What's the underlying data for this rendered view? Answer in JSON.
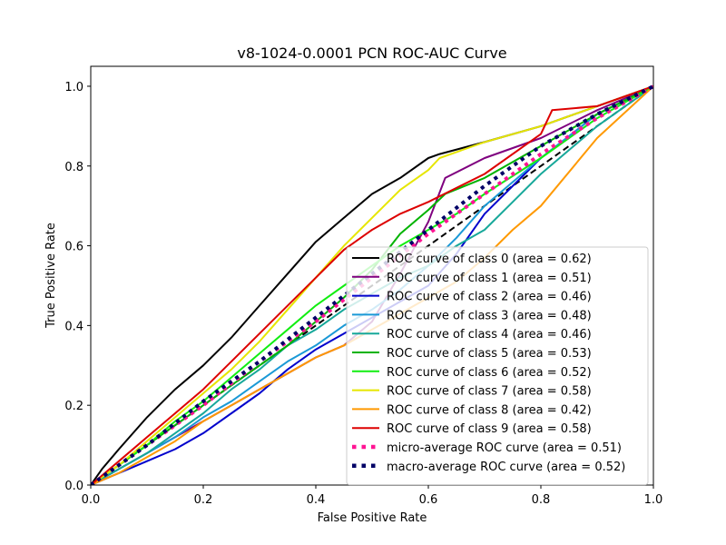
{
  "chart_data": {
    "type": "line",
    "title": "v8-1024-0.0001 PCN ROC-AUC Curve",
    "xlabel": "False Positive Rate",
    "ylabel": "True Positive Rate",
    "xlim": [
      0.0,
      1.0
    ],
    "ylim": [
      0.0,
      1.05
    ],
    "xticks": [
      "0.0",
      "0.2",
      "0.4",
      "0.6",
      "0.8",
      "1.0"
    ],
    "yticks": [
      "0.0",
      "0.2",
      "0.4",
      "0.6",
      "0.8",
      "1.0"
    ],
    "grid": false,
    "legend_position": "lower right",
    "chance_line": {
      "x": [
        0,
        1
      ],
      "y": [
        0,
        1
      ],
      "color": "#000000",
      "style": "dashed"
    },
    "series": [
      {
        "name": "ROC curve of class 0 (area = 0.62)",
        "color": "#000000",
        "style": "solid",
        "x": [
          0,
          0.02,
          0.05,
          0.1,
          0.15,
          0.2,
          0.25,
          0.3,
          0.35,
          0.4,
          0.45,
          0.5,
          0.55,
          0.6,
          0.62,
          0.7,
          0.8,
          0.9,
          1.0
        ],
        "y": [
          0,
          0.04,
          0.09,
          0.17,
          0.24,
          0.3,
          0.37,
          0.45,
          0.53,
          0.61,
          0.67,
          0.73,
          0.77,
          0.82,
          0.83,
          0.86,
          0.9,
          0.95,
          1.0
        ]
      },
      {
        "name": "ROC curve of class 1 (area = 0.51)",
        "color": "#7f007f",
        "style": "solid",
        "x": [
          0,
          0.05,
          0.1,
          0.15,
          0.2,
          0.25,
          0.3,
          0.35,
          0.4,
          0.45,
          0.5,
          0.55,
          0.6,
          0.63,
          0.7,
          0.8,
          0.9,
          1.0
        ],
        "y": [
          0,
          0.04,
          0.08,
          0.12,
          0.16,
          0.2,
          0.24,
          0.28,
          0.32,
          0.35,
          0.41,
          0.53,
          0.66,
          0.77,
          0.82,
          0.87,
          0.94,
          1.0
        ]
      },
      {
        "name": "ROC curve of class 2 (area = 0.46)",
        "color": "#0000cc",
        "style": "solid",
        "x": [
          0,
          0.05,
          0.1,
          0.15,
          0.2,
          0.25,
          0.3,
          0.35,
          0.4,
          0.45,
          0.5,
          0.55,
          0.6,
          0.65,
          0.7,
          0.8,
          0.9,
          1.0
        ],
        "y": [
          0,
          0.03,
          0.06,
          0.09,
          0.13,
          0.18,
          0.23,
          0.29,
          0.34,
          0.38,
          0.42,
          0.46,
          0.5,
          0.58,
          0.68,
          0.82,
          0.93,
          1.0
        ]
      },
      {
        "name": "ROC curve of class 3 (area = 0.48)",
        "color": "#1a99d6",
        "style": "solid",
        "x": [
          0,
          0.05,
          0.1,
          0.15,
          0.2,
          0.25,
          0.3,
          0.35,
          0.4,
          0.45,
          0.5,
          0.55,
          0.6,
          0.65,
          0.7,
          0.8,
          0.9,
          1.0
        ],
        "y": [
          0,
          0.04,
          0.08,
          0.12,
          0.17,
          0.21,
          0.26,
          0.31,
          0.35,
          0.4,
          0.44,
          0.49,
          0.55,
          0.62,
          0.7,
          0.82,
          0.93,
          1.0
        ]
      },
      {
        "name": "ROC curve of class 4 (area = 0.46)",
        "color": "#17a89a",
        "style": "solid",
        "x": [
          0,
          0.05,
          0.1,
          0.15,
          0.2,
          0.25,
          0.3,
          0.35,
          0.4,
          0.45,
          0.5,
          0.55,
          0.6,
          0.65,
          0.7,
          0.75,
          0.8,
          0.9,
          1.0
        ],
        "y": [
          0,
          0.04,
          0.08,
          0.13,
          0.18,
          0.24,
          0.29,
          0.35,
          0.39,
          0.44,
          0.48,
          0.52,
          0.55,
          0.6,
          0.64,
          0.71,
          0.78,
          0.9,
          1.0
        ]
      },
      {
        "name": "ROC curve of class 5 (area = 0.53)",
        "color": "#00b300",
        "style": "solid",
        "x": [
          0,
          0.05,
          0.1,
          0.15,
          0.2,
          0.25,
          0.3,
          0.35,
          0.4,
          0.45,
          0.5,
          0.55,
          0.6,
          0.63,
          0.7,
          0.8,
          0.9,
          1.0
        ],
        "y": [
          0,
          0.05,
          0.1,
          0.15,
          0.2,
          0.25,
          0.3,
          0.35,
          0.41,
          0.47,
          0.54,
          0.63,
          0.69,
          0.73,
          0.77,
          0.85,
          0.93,
          1.0
        ]
      },
      {
        "name": "ROC curve of class 6 (area = 0.52)",
        "color": "#11ee11",
        "style": "solid",
        "x": [
          0,
          0.05,
          0.1,
          0.15,
          0.2,
          0.25,
          0.3,
          0.35,
          0.4,
          0.45,
          0.5,
          0.55,
          0.6,
          0.65,
          0.7,
          0.8,
          0.9,
          1.0
        ],
        "y": [
          0,
          0.05,
          0.1,
          0.16,
          0.21,
          0.27,
          0.33,
          0.39,
          0.45,
          0.5,
          0.55,
          0.6,
          0.64,
          0.68,
          0.73,
          0.82,
          0.92,
          1.0
        ]
      },
      {
        "name": "ROC curve of class 7 (area = 0.58)",
        "color": "#e6e600",
        "style": "solid",
        "x": [
          0,
          0.05,
          0.1,
          0.15,
          0.2,
          0.25,
          0.3,
          0.35,
          0.4,
          0.45,
          0.5,
          0.55,
          0.6,
          0.62,
          0.7,
          0.8,
          0.9,
          1.0
        ],
        "y": [
          0,
          0.05,
          0.11,
          0.17,
          0.23,
          0.29,
          0.36,
          0.44,
          0.52,
          0.6,
          0.67,
          0.74,
          0.79,
          0.82,
          0.86,
          0.9,
          0.95,
          1.0
        ]
      },
      {
        "name": "ROC curve of class 8 (area = 0.42)",
        "color": "#ff9900",
        "style": "solid",
        "x": [
          0,
          0.05,
          0.1,
          0.15,
          0.2,
          0.25,
          0.3,
          0.35,
          0.4,
          0.45,
          0.5,
          0.55,
          0.6,
          0.65,
          0.7,
          0.75,
          0.8,
          0.9,
          1.0
        ],
        "y": [
          0,
          0.03,
          0.07,
          0.11,
          0.16,
          0.2,
          0.24,
          0.28,
          0.32,
          0.35,
          0.39,
          0.43,
          0.47,
          0.51,
          0.57,
          0.64,
          0.7,
          0.87,
          1.0
        ]
      },
      {
        "name": "ROC curve of class 9 (area = 0.58)",
        "color": "#dd0000",
        "style": "solid",
        "x": [
          0,
          0.05,
          0.1,
          0.15,
          0.2,
          0.25,
          0.3,
          0.35,
          0.4,
          0.45,
          0.5,
          0.55,
          0.6,
          0.7,
          0.8,
          0.82,
          0.9,
          1.0
        ],
        "y": [
          0,
          0.06,
          0.12,
          0.18,
          0.24,
          0.31,
          0.38,
          0.45,
          0.52,
          0.59,
          0.64,
          0.68,
          0.71,
          0.78,
          0.88,
          0.94,
          0.95,
          1.0
        ]
      },
      {
        "name": "micro-average ROC curve (area = 0.51)",
        "color": "#ff1493",
        "style": "dotted",
        "x": [
          0,
          0.1,
          0.2,
          0.3,
          0.4,
          0.5,
          0.6,
          0.7,
          0.8,
          0.9,
          1.0
        ],
        "y": [
          0,
          0.1,
          0.2,
          0.31,
          0.41,
          0.52,
          0.63,
          0.73,
          0.83,
          0.92,
          1.0
        ]
      },
      {
        "name": "macro-average ROC curve (area = 0.52)",
        "color": "#000066",
        "style": "dotted",
        "x": [
          0,
          0.1,
          0.2,
          0.3,
          0.4,
          0.5,
          0.6,
          0.7,
          0.8,
          0.9,
          1.0
        ],
        "y": [
          0,
          0.1,
          0.21,
          0.31,
          0.42,
          0.53,
          0.64,
          0.75,
          0.85,
          0.93,
          1.0
        ]
      }
    ]
  }
}
